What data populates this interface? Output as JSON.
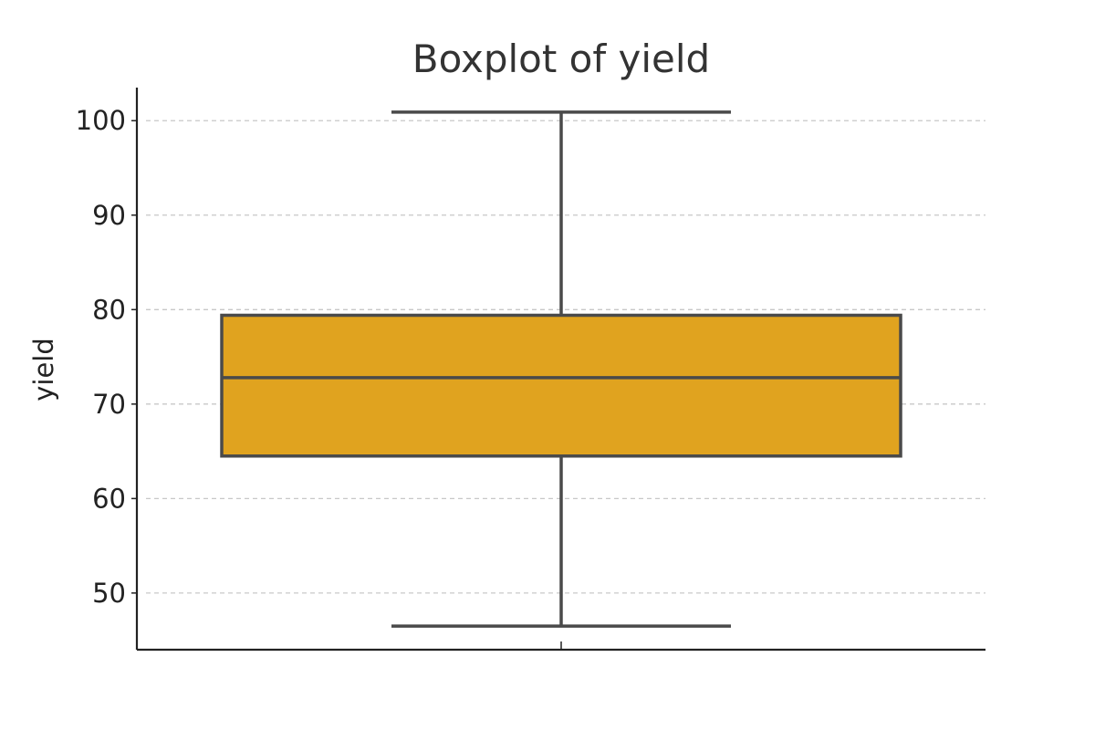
{
  "chart_data": {
    "type": "box",
    "title": "Boxplot of yield",
    "xlabel": "",
    "ylabel": "yield",
    "ylim": [
      44,
      103.5
    ],
    "yticks": [
      50,
      60,
      70,
      80,
      90,
      100
    ],
    "grid": "horizontal dashed",
    "box": {
      "whisker_low": 46.5,
      "q1": 64.5,
      "median": 72.8,
      "q3": 79.4,
      "whisker_high": 100.9
    },
    "colors": {
      "box_fill": "#E0A31F",
      "box_edge": "#4A4A4A",
      "grid": "#C8C8C8",
      "axis": "#222222"
    }
  }
}
